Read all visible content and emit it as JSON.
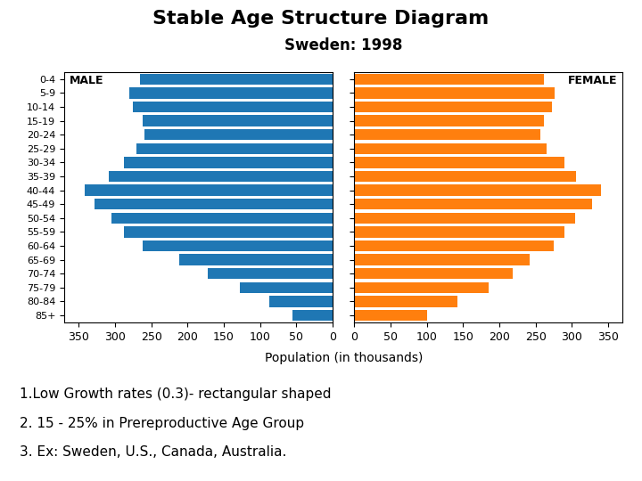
{
  "chart_data": {
    "type": "bar",
    "orientation": "horizontal",
    "title": "Stable Age Structure Diagram",
    "subtitle": "Sweden: 1998",
    "xlabel": "Population (in thousands)",
    "categories": [
      "85+",
      "80-84",
      "75-79",
      "70-74",
      "65-69",
      "60-64",
      "55-59",
      "50-54",
      "45-49",
      "40-44",
      "35-39",
      "30-34",
      "25-29",
      "20-24",
      "15-19",
      "10-14",
      "5-9",
      "0-4"
    ],
    "series": [
      {
        "name": "MALE",
        "color": "#1f77b4",
        "values": [
          55,
          88,
          128,
          172,
          212,
          262,
          288,
          305,
          328,
          342,
          308,
          288,
          270,
          260,
          262,
          275,
          280,
          265
        ]
      },
      {
        "name": "FEMALE",
        "color": "#ff7f0e",
        "values": [
          100,
          142,
          185,
          218,
          242,
          275,
          290,
          305,
          328,
          340,
          306,
          290,
          265,
          256,
          262,
          272,
          276,
          262
        ]
      }
    ],
    "xlim": [
      0,
      370
    ],
    "xticks": [
      0,
      50,
      100,
      150,
      200,
      250,
      300,
      350
    ],
    "annotations": [
      "1.Low Growth rates (0.3)- rectangular shaped",
      "2. 15 - 25% in Prereproductive Age Group",
      "3. Ex: Sweden, U.S., Canada, Australia."
    ]
  }
}
